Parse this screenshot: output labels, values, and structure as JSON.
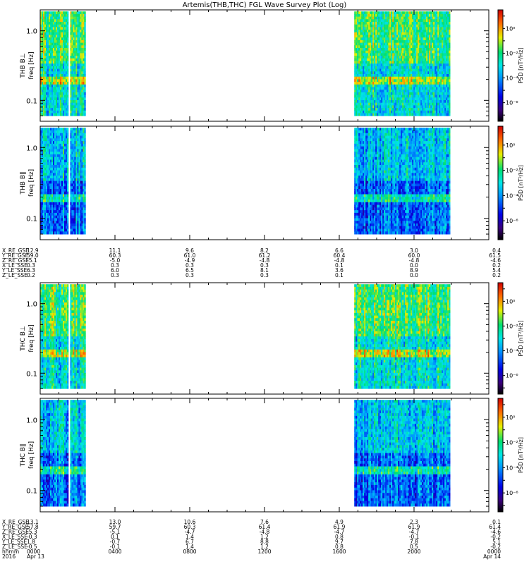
{
  "title": "Artemis(THB,THC) FGL Wave Survey Plot (Log)",
  "chart_data": {
    "type": "heatmap",
    "title": "Artemis(THB,THC) FGL Wave Survey Plot (Log)",
    "x_ticks": [
      "0000",
      "0400",
      "0800",
      "1200",
      "1600",
      "2000",
      "0000"
    ],
    "x_hours": [
      0,
      4,
      8,
      12,
      16,
      20,
      24
    ],
    "y_scale": "log",
    "y_range_hz": [
      0.05,
      2.0
    ],
    "y_ticks": [
      {
        "value": 0.1,
        "label": "0.1"
      },
      {
        "value": 1.0,
        "label": "1.0"
      }
    ],
    "data_intervals_hours": [
      [
        0,
        1.45
      ],
      [
        1.6,
        2.4
      ],
      [
        16.8,
        21.9
      ]
    ],
    "colorbar": {
      "label": "PSD [nT²/Hz]",
      "scale": "log",
      "ticks": [
        {
          "exp": 0,
          "label": "10⁰"
        },
        {
          "exp": -2,
          "label": "10⁻²"
        },
        {
          "exp": -4,
          "label": "10⁻⁴"
        },
        {
          "exp": -6,
          "label": "10⁻⁶"
        }
      ]
    },
    "panels": [
      {
        "id": "thb_bperp",
        "ylabel": "THB B⊥",
        "ylabel2": "freq [Hz]",
        "level": "high"
      },
      {
        "id": "thb_bpar",
        "ylabel": "THB B∥",
        "ylabel2": "freq [Hz]",
        "level": "low"
      },
      {
        "id": "thc_bperp",
        "ylabel": "THC B⊥",
        "ylabel2": "freq [Hz]",
        "level": "high"
      },
      {
        "id": "thc_bpar",
        "ylabel": "THC B∥",
        "ylabel2": "freq [Hz]",
        "level": "low"
      }
    ],
    "ephemeris_thb": [
      {
        "label": "X_RE_GSE",
        "values": [
          "12.9",
          "11.1",
          "9.6",
          "8.2",
          "6.6",
          "3.0",
          "0.4"
        ]
      },
      {
        "label": "Y_RE_GSE",
        "values": [
          "59.0",
          "60.3",
          "61.0",
          "61.2",
          "60.4",
          "60.0",
          "61.5"
        ]
      },
      {
        "label": "Z_RE_GSE",
        "values": [
          "-5.1",
          "-5.0",
          "-4.9",
          "-4.8",
          "-4.8",
          "-4.8",
          "-4.6"
        ]
      },
      {
        "label": "X_LE_SSE",
        "values": [
          "0.3",
          "0.3",
          "0.3",
          "0.3",
          "0.1",
          "0.0",
          "0.2"
        ]
      },
      {
        "label": "Y_LE_SSE",
        "values": [
          "6.3",
          "6.0",
          "6.5",
          "8.1",
          "3.6",
          "8.9",
          "5.4"
        ]
      },
      {
        "label": "Z_LE_SSE",
        "values": [
          "0.2",
          "0.3",
          "0.3",
          "0.3",
          "0.1",
          "0.0",
          "0.2"
        ]
      }
    ],
    "ephemeris_thc": [
      {
        "label": "X_RE_GSE",
        "values": [
          "13.1",
          "13.0",
          "10.6",
          "7.6",
          "4.9",
          "2.3",
          "0.1"
        ]
      },
      {
        "label": "Y_RE_GSE",
        "values": [
          "57.8",
          "59.7",
          "60.3",
          "61.4",
          "61.9",
          "61.9",
          "61.4"
        ]
      },
      {
        "label": "Z_RE_GSE",
        "values": [
          "-5.3",
          "-5.1",
          "-4.7",
          "-4.8",
          "-4.7",
          "-4.7",
          "-4.6"
        ]
      },
      {
        "label": "X_LE_SSE",
        "values": [
          "-0.3",
          "0.1",
          "1.4",
          "1.2",
          "0.8",
          "-0.1",
          "-0.2"
        ]
      },
      {
        "label": "Y_LE_SSE",
        "values": [
          "1.8",
          "-0.7",
          "6.7",
          "8.8",
          "9.7",
          "7.8",
          "5.1"
        ]
      },
      {
        "label": "Z_LE_SSE",
        "values": [
          "-0.5",
          "-0.1",
          "1.4",
          "1.2",
          "0.8",
          "0.5",
          "-0.2"
        ]
      }
    ],
    "time_rows": [
      {
        "label": "hhmm",
        "values": [
          "0000",
          "0400",
          "0800",
          "1200",
          "1600",
          "2000",
          "0000"
        ]
      },
      {
        "label": "2016",
        "values": [
          "Apr 13",
          "",
          "",
          "",
          "",
          "",
          "Apr 14"
        ]
      }
    ]
  }
}
